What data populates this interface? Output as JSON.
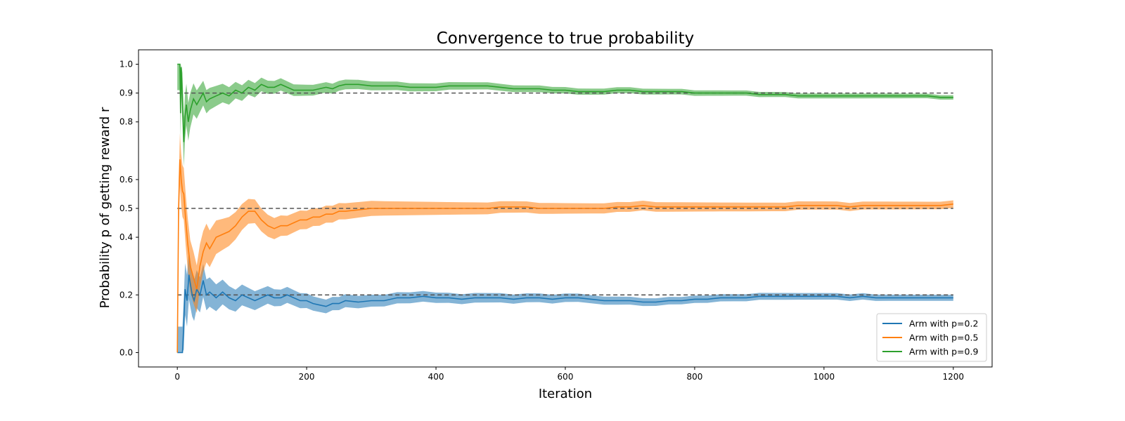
{
  "chart_data": {
    "type": "line",
    "title": "Convergence to true probability",
    "xlabel": "Iteration",
    "ylabel": "Probability p of getting reward r",
    "xlim": [
      -60,
      1260
    ],
    "ylim": [
      -0.05,
      1.05
    ],
    "xticks": [
      0,
      200,
      400,
      600,
      800,
      1000,
      1200
    ],
    "xtick_labels": [
      "0",
      "200",
      "400",
      "600",
      "800",
      "1000",
      "1200"
    ],
    "yticks": [
      0.0,
      0.2,
      0.4,
      0.5,
      0.6,
      0.8,
      0.9,
      1.0
    ],
    "ytick_labels": [
      "0.0",
      "0.2",
      "0.4",
      "0.5",
      "0.6",
      "0.8",
      "0.9",
      "1.0"
    ],
    "grid": false,
    "legend_position": "bottom-right",
    "reference_lines": [
      0.2,
      0.5,
      0.9
    ],
    "series": [
      {
        "name": "Arm with p=0.2",
        "color": "#1f77b4",
        "x": [
          0,
          3,
          8,
          10,
          12,
          15,
          18,
          20,
          23,
          26,
          30,
          35,
          40,
          45,
          50,
          60,
          70,
          80,
          90,
          100,
          110,
          120,
          130,
          140,
          150,
          160,
          170,
          180,
          190,
          200,
          210,
          220,
          230,
          240,
          250,
          260,
          280,
          300,
          320,
          340,
          360,
          380,
          400,
          420,
          440,
          460,
          480,
          500,
          520,
          540,
          560,
          580,
          600,
          620,
          640,
          660,
          680,
          700,
          720,
          740,
          760,
          780,
          800,
          820,
          840,
          860,
          880,
          900,
          920,
          940,
          960,
          980,
          1000,
          1020,
          1040,
          1060,
          1080,
          1100,
          1120,
          1140,
          1160,
          1180,
          1200
        ],
        "y": [
          0.0,
          0.0,
          0.0,
          0.1,
          0.22,
          0.18,
          0.27,
          0.24,
          0.2,
          0.18,
          0.22,
          0.2,
          0.25,
          0.2,
          0.21,
          0.19,
          0.21,
          0.19,
          0.18,
          0.2,
          0.19,
          0.18,
          0.19,
          0.2,
          0.19,
          0.19,
          0.2,
          0.19,
          0.18,
          0.18,
          0.17,
          0.165,
          0.16,
          0.17,
          0.17,
          0.18,
          0.175,
          0.18,
          0.18,
          0.19,
          0.19,
          0.195,
          0.19,
          0.19,
          0.185,
          0.19,
          0.19,
          0.19,
          0.185,
          0.19,
          0.19,
          0.185,
          0.19,
          0.19,
          0.185,
          0.18,
          0.18,
          0.18,
          0.175,
          0.175,
          0.18,
          0.18,
          0.185,
          0.185,
          0.19,
          0.19,
          0.19,
          0.195,
          0.195,
          0.195,
          0.195,
          0.195,
          0.195,
          0.195,
          0.19,
          0.195,
          0.19,
          0.19,
          0.19,
          0.19,
          0.19,
          0.19,
          0.19
        ]
      },
      {
        "name": "Arm with p=0.5",
        "color": "#ff7f0e",
        "x": [
          0,
          2,
          4,
          6,
          8,
          10,
          13,
          16,
          20,
          25,
          30,
          35,
          40,
          45,
          50,
          60,
          70,
          80,
          90,
          100,
          110,
          120,
          130,
          140,
          150,
          160,
          170,
          180,
          190,
          200,
          210,
          220,
          230,
          240,
          250,
          260,
          280,
          300,
          320,
          340,
          360,
          380,
          400,
          420,
          440,
          460,
          480,
          500,
          520,
          540,
          560,
          580,
          600,
          620,
          640,
          660,
          680,
          700,
          720,
          740,
          760,
          780,
          800,
          820,
          840,
          860,
          880,
          900,
          920,
          940,
          960,
          980,
          1000,
          1020,
          1040,
          1060,
          1080,
          1100,
          1120,
          1140,
          1160,
          1180,
          1200
        ],
        "y": [
          0.0,
          0.5,
          0.67,
          0.6,
          0.56,
          0.55,
          0.46,
          0.38,
          0.3,
          0.26,
          0.22,
          0.3,
          0.35,
          0.38,
          0.36,
          0.4,
          0.41,
          0.42,
          0.44,
          0.47,
          0.49,
          0.49,
          0.46,
          0.44,
          0.43,
          0.44,
          0.44,
          0.45,
          0.46,
          0.46,
          0.47,
          0.47,
          0.48,
          0.48,
          0.49,
          0.49,
          0.495,
          0.5,
          0.5,
          0.5,
          0.5,
          0.5,
          0.5,
          0.5,
          0.5,
          0.5,
          0.5,
          0.505,
          0.505,
          0.505,
          0.5,
          0.5,
          0.5,
          0.5,
          0.5,
          0.5,
          0.505,
          0.505,
          0.51,
          0.505,
          0.505,
          0.505,
          0.505,
          0.505,
          0.505,
          0.505,
          0.505,
          0.505,
          0.505,
          0.505,
          0.51,
          0.51,
          0.51,
          0.51,
          0.505,
          0.51,
          0.51,
          0.51,
          0.51,
          0.51,
          0.51,
          0.51,
          0.515
        ]
      },
      {
        "name": "Arm with p=0.9",
        "color": "#2ca02c",
        "x": [
          0,
          2,
          4,
          5,
          6,
          8,
          10,
          12,
          14,
          17,
          20,
          25,
          30,
          35,
          40,
          45,
          50,
          60,
          70,
          80,
          90,
          100,
          110,
          120,
          130,
          140,
          150,
          160,
          170,
          180,
          190,
          200,
          210,
          220,
          230,
          240,
          250,
          260,
          280,
          300,
          320,
          340,
          360,
          380,
          400,
          420,
          440,
          460,
          480,
          500,
          520,
          540,
          560,
          580,
          600,
          620,
          640,
          660,
          680,
          700,
          720,
          740,
          760,
          780,
          800,
          820,
          840,
          860,
          880,
          900,
          920,
          940,
          960,
          980,
          1000,
          1020,
          1040,
          1060,
          1080,
          1100,
          1120,
          1140,
          1160,
          1180,
          1200
        ],
        "y": [
          1.0,
          1.0,
          1.0,
          0.83,
          0.99,
          0.88,
          0.73,
          0.82,
          0.86,
          0.8,
          0.84,
          0.88,
          0.86,
          0.88,
          0.9,
          0.87,
          0.88,
          0.89,
          0.9,
          0.89,
          0.91,
          0.9,
          0.92,
          0.91,
          0.93,
          0.92,
          0.92,
          0.93,
          0.92,
          0.91,
          0.91,
          0.91,
          0.91,
          0.915,
          0.92,
          0.915,
          0.925,
          0.93,
          0.93,
          0.925,
          0.925,
          0.925,
          0.92,
          0.92,
          0.92,
          0.925,
          0.925,
          0.925,
          0.925,
          0.92,
          0.915,
          0.915,
          0.915,
          0.91,
          0.91,
          0.905,
          0.905,
          0.905,
          0.91,
          0.91,
          0.905,
          0.905,
          0.905,
          0.905,
          0.9,
          0.9,
          0.9,
          0.9,
          0.9,
          0.895,
          0.895,
          0.895,
          0.89,
          0.89,
          0.89,
          0.89,
          0.89,
          0.89,
          0.89,
          0.89,
          0.89,
          0.89,
          0.89,
          0.885,
          0.885
        ]
      }
    ]
  }
}
